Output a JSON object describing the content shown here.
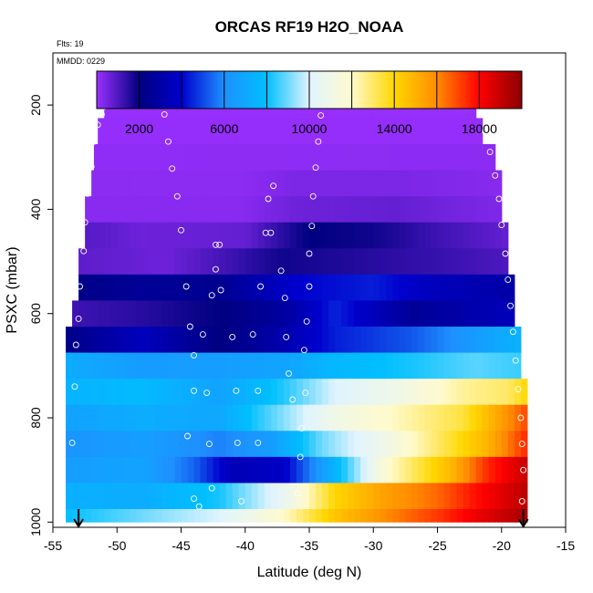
{
  "chart_data": {
    "type": "heatmap",
    "title": "ORCAS RF19 H2O_NOAA",
    "note_flights": "Flts: 19",
    "note_date": "MMDD: 0229",
    "xlabel": "Latitude (deg N)",
    "ylabel": "PSXC (mbar)",
    "xlim": [
      -55,
      -15
    ],
    "ylim": [
      1010,
      100
    ],
    "x_ticks": [
      -55,
      -50,
      -45,
      -40,
      -35,
      -30,
      -25,
      -20,
      -15
    ],
    "y_ticks": [
      200,
      400,
      600,
      800,
      1000
    ],
    "colorbar": {
      "range": [
        0,
        20000
      ],
      "ticks": [
        2000,
        6000,
        10000,
        14000,
        18000
      ],
      "stops": [
        {
          "v": 0,
          "c": "#9b30ff"
        },
        {
          "v": 2000,
          "c": "#000080"
        },
        {
          "v": 4000,
          "c": "#0000cd"
        },
        {
          "v": 6000,
          "c": "#1e90ff"
        },
        {
          "v": 8000,
          "c": "#00bfff"
        },
        {
          "v": 10000,
          "c": "#e0f4ff"
        },
        {
          "v": 12000,
          "c": "#fffacd"
        },
        {
          "v": 14000,
          "c": "#ffd700"
        },
        {
          "v": 16000,
          "c": "#ff8c00"
        },
        {
          "v": 18000,
          "c": "#ff0000"
        },
        {
          "v": 20000,
          "c": "#8b0000"
        }
      ]
    },
    "bands": [
      {
        "p": [
          175,
          225
        ],
        "lat": [
          -51,
          -22
        ],
        "vals": [
          {
            "lat": -51,
            "v": 50
          },
          {
            "lat": -22,
            "v": 50
          }
        ]
      },
      {
        "p": [
          225,
          275
        ],
        "lat": [
          -51.5,
          -21.5
        ],
        "vals": [
          {
            "lat": -51.5,
            "v": 80
          },
          {
            "lat": -21.5,
            "v": 80
          }
        ]
      },
      {
        "p": [
          275,
          325
        ],
        "lat": [
          -51.8,
          -20.5
        ],
        "vals": [
          {
            "lat": -51.8,
            "v": 150
          },
          {
            "lat": -20.5,
            "v": 200
          }
        ]
      },
      {
        "p": [
          325,
          375
        ],
        "lat": [
          -52,
          -20
        ],
        "vals": [
          {
            "lat": -52,
            "v": 200
          },
          {
            "lat": -40,
            "v": 200
          },
          {
            "lat": -36,
            "v": 400
          },
          {
            "lat": -28,
            "v": 400
          },
          {
            "lat": -20,
            "v": 250
          }
        ]
      },
      {
        "p": [
          375,
          425
        ],
        "lat": [
          -52.5,
          -20
        ],
        "vals": [
          {
            "lat": -52.5,
            "v": 250
          },
          {
            "lat": -40,
            "v": 250
          },
          {
            "lat": -36,
            "v": 600
          },
          {
            "lat": -28,
            "v": 700
          },
          {
            "lat": -20,
            "v": 350
          }
        ]
      },
      {
        "p": [
          425,
          475
        ],
        "lat": [
          -52.5,
          -19.5
        ],
        "vals": [
          {
            "lat": -52.5,
            "v": 900
          },
          {
            "lat": -48,
            "v": 600
          },
          {
            "lat": -40,
            "v": 700
          },
          {
            "lat": -35,
            "v": 2000
          },
          {
            "lat": -30,
            "v": 1800
          },
          {
            "lat": -25,
            "v": 1200
          },
          {
            "lat": -19.5,
            "v": 700
          }
        ]
      },
      {
        "p": [
          475,
          525
        ],
        "lat": [
          -53,
          -19.5
        ],
        "vals": [
          {
            "lat": -53,
            "v": 800
          },
          {
            "lat": -46,
            "v": 600
          },
          {
            "lat": -42,
            "v": 1100
          },
          {
            "lat": -37,
            "v": 1800
          },
          {
            "lat": -30,
            "v": 1500
          },
          {
            "lat": -25,
            "v": 1300
          },
          {
            "lat": -19.5,
            "v": 1000
          }
        ]
      },
      {
        "p": [
          525,
          575
        ],
        "lat": [
          -53,
          -19
        ],
        "vals": [
          {
            "lat": -53,
            "v": 2200
          },
          {
            "lat": -48,
            "v": 2600
          },
          {
            "lat": -42,
            "v": 2400
          },
          {
            "lat": -36,
            "v": 4000
          },
          {
            "lat": -30,
            "v": 4400
          },
          {
            "lat": -25,
            "v": 3500
          },
          {
            "lat": -19,
            "v": 3000
          }
        ]
      },
      {
        "p": [
          575,
          625
        ],
        "lat": [
          -53.5,
          -19
        ],
        "vals": [
          {
            "lat": -53.5,
            "v": 1200
          },
          {
            "lat": -48,
            "v": 1500
          },
          {
            "lat": -42,
            "v": 2000
          },
          {
            "lat": -37,
            "v": 2800
          },
          {
            "lat": -33,
            "v": 4500
          },
          {
            "lat": -27,
            "v": 2600
          },
          {
            "lat": -19,
            "v": 3500
          }
        ]
      },
      {
        "p": [
          625,
          675
        ],
        "lat": [
          -54,
          -18.5
        ],
        "vals": [
          {
            "lat": -54,
            "v": 2200
          },
          {
            "lat": -48,
            "v": 3600
          },
          {
            "lat": -42,
            "v": 2000
          },
          {
            "lat": -37,
            "v": 3200
          },
          {
            "lat": -33,
            "v": 4400
          },
          {
            "lat": -27,
            "v": 5200
          },
          {
            "lat": -22,
            "v": 6500
          },
          {
            "lat": -18.5,
            "v": 7500
          }
        ]
      },
      {
        "p": [
          675,
          725
        ],
        "lat": [
          -54,
          -18.5
        ],
        "vals": [
          {
            "lat": -54,
            "v": 7200
          },
          {
            "lat": -48,
            "v": 6500
          },
          {
            "lat": -42,
            "v": 6600
          },
          {
            "lat": -37,
            "v": 6800
          },
          {
            "lat": -33,
            "v": 7700
          },
          {
            "lat": -27,
            "v": 8200
          },
          {
            "lat": -22,
            "v": 8800
          },
          {
            "lat": -18.5,
            "v": 8500
          }
        ]
      },
      {
        "p": [
          725,
          775
        ],
        "lat": [
          -54,
          -18
        ],
        "vals": [
          {
            "lat": -54,
            "v": 7500
          },
          {
            "lat": -48,
            "v": 7800
          },
          {
            "lat": -42,
            "v": 6800
          },
          {
            "lat": -37,
            "v": 8300
          },
          {
            "lat": -33,
            "v": 10000
          },
          {
            "lat": -28,
            "v": 11000
          },
          {
            "lat": -23,
            "v": 12500
          },
          {
            "lat": -19.5,
            "v": 13000
          },
          {
            "lat": -18,
            "v": 14000
          }
        ]
      },
      {
        "p": [
          775,
          825
        ],
        "lat": [
          -54,
          -18
        ],
        "vals": [
          {
            "lat": -54,
            "v": 6800
          },
          {
            "lat": -48,
            "v": 7200
          },
          {
            "lat": -42,
            "v": 7000
          },
          {
            "lat": -37,
            "v": 9200
          },
          {
            "lat": -33,
            "v": 11000
          },
          {
            "lat": -28,
            "v": 12200
          },
          {
            "lat": -23,
            "v": 13400
          },
          {
            "lat": -20,
            "v": 15500
          },
          {
            "lat": -18,
            "v": 17000
          }
        ]
      },
      {
        "p": [
          825,
          875
        ],
        "lat": [
          -54,
          -18
        ],
        "vals": [
          {
            "lat": -54,
            "v": 6200
          },
          {
            "lat": -48,
            "v": 6600
          },
          {
            "lat": -42,
            "v": 5800
          },
          {
            "lat": -38,
            "v": 6500
          },
          {
            "lat": -34,
            "v": 9000
          },
          {
            "lat": -29,
            "v": 11000
          },
          {
            "lat": -24,
            "v": 13500
          },
          {
            "lat": -21,
            "v": 15000
          },
          {
            "lat": -18,
            "v": 17500
          }
        ]
      },
      {
        "p": [
          875,
          925
        ],
        "lat": [
          -54,
          -18
        ],
        "vals": [
          {
            "lat": -54,
            "v": 6600
          },
          {
            "lat": -48,
            "v": 6800
          },
          {
            "lat": -44,
            "v": 5400
          },
          {
            "lat": -41,
            "v": 3400
          },
          {
            "lat": -37,
            "v": 3800
          },
          {
            "lat": -33,
            "v": 7500
          },
          {
            "lat": -29,
            "v": 11800
          },
          {
            "lat": -24,
            "v": 14800
          },
          {
            "lat": -21,
            "v": 17500
          },
          {
            "lat": -18,
            "v": 19000
          }
        ]
      },
      {
        "p": [
          925,
          975
        ],
        "lat": [
          -54,
          -18
        ],
        "vals": [
          {
            "lat": -54,
            "v": 7400
          },
          {
            "lat": -48,
            "v": 7200
          },
          {
            "lat": -42,
            "v": 8200
          },
          {
            "lat": -37,
            "v": 10500
          },
          {
            "lat": -33,
            "v": 14000
          },
          {
            "lat": -29,
            "v": 15500
          },
          {
            "lat": -25,
            "v": 16500
          },
          {
            "lat": -22,
            "v": 17800
          },
          {
            "lat": -18,
            "v": 19200
          }
        ]
      },
      {
        "p": [
          975,
          1000
        ],
        "lat": [
          -54,
          -18
        ],
        "vals": [
          {
            "lat": -54,
            "v": 8000
          },
          {
            "lat": -48,
            "v": 9000
          },
          {
            "lat": -42,
            "v": 10000
          },
          {
            "lat": -37,
            "v": 12000
          },
          {
            "lat": -33,
            "v": 14500
          },
          {
            "lat": -29,
            "v": 16000
          },
          {
            "lat": -25,
            "v": 17200
          },
          {
            "lat": -22,
            "v": 18300
          },
          {
            "lat": -18,
            "v": 19500
          }
        ]
      }
    ],
    "track_points": [
      {
        "lat": -50.7,
        "p": 190
      },
      {
        "lat": -50.2,
        "p": 190
      },
      {
        "lat": -49.6,
        "p": 190
      },
      {
        "lat": -49.0,
        "p": 190
      },
      {
        "lat": -48.4,
        "p": 190
      },
      {
        "lat": -47.8,
        "p": 190
      },
      {
        "lat": -47.2,
        "p": 190
      },
      {
        "lat": -46.6,
        "p": 190
      },
      {
        "lat": -51.0,
        "p": 203
      },
      {
        "lat": -51.2,
        "p": 218
      },
      {
        "lat": -51.5,
        "p": 238
      },
      {
        "lat": -51.8,
        "p": 270
      },
      {
        "lat": -52.0,
        "p": 318
      },
      {
        "lat": -52.3,
        "p": 370
      },
      {
        "lat": -52.5,
        "p": 425
      },
      {
        "lat": -52.6,
        "p": 480
      },
      {
        "lat": -52.9,
        "p": 548
      },
      {
        "lat": -53.0,
        "p": 610
      },
      {
        "lat": -53.2,
        "p": 660
      },
      {
        "lat": -53.3,
        "p": 740
      },
      {
        "lat": -53.5,
        "p": 848
      },
      {
        "lat": -46.3,
        "p": 218
      },
      {
        "lat": -46.0,
        "p": 270
      },
      {
        "lat": -45.7,
        "p": 322
      },
      {
        "lat": -45.3,
        "p": 375
      },
      {
        "lat": -45.0,
        "p": 440
      },
      {
        "lat": -44.6,
        "p": 548
      },
      {
        "lat": -44.3,
        "p": 625
      },
      {
        "lat": -44.0,
        "p": 680
      },
      {
        "lat": -44.0,
        "p": 748
      },
      {
        "lat": -44.5,
        "p": 835
      },
      {
        "lat": -44.0,
        "p": 955
      },
      {
        "lat": -43.6,
        "p": 970
      },
      {
        "lat": -43.3,
        "p": 640
      },
      {
        "lat": -43.0,
        "p": 752
      },
      {
        "lat": -42.8,
        "p": 850
      },
      {
        "lat": -42.6,
        "p": 935
      },
      {
        "lat": -42.3,
        "p": 468
      },
      {
        "lat": -42.0,
        "p": 468
      },
      {
        "lat": -42.3,
        "p": 515
      },
      {
        "lat": -42.6,
        "p": 565
      },
      {
        "lat": -41.9,
        "p": 555
      },
      {
        "lat": -41.0,
        "p": 645
      },
      {
        "lat": -40.7,
        "p": 748
      },
      {
        "lat": -40.6,
        "p": 848
      },
      {
        "lat": -40.3,
        "p": 960
      },
      {
        "lat": -39.4,
        "p": 640
      },
      {
        "lat": -39.0,
        "p": 748
      },
      {
        "lat": -39.0,
        "p": 848
      },
      {
        "lat": -38.8,
        "p": 548
      },
      {
        "lat": -38.4,
        "p": 445
      },
      {
        "lat": -38.0,
        "p": 445
      },
      {
        "lat": -38.2,
        "p": 380
      },
      {
        "lat": -37.8,
        "p": 355
      },
      {
        "lat": -37.2,
        "p": 518
      },
      {
        "lat": -36.9,
        "p": 570
      },
      {
        "lat": -36.8,
        "p": 645
      },
      {
        "lat": -36.6,
        "p": 715
      },
      {
        "lat": -36.3,
        "p": 765
      },
      {
        "lat": -35.9,
        "p": 945
      },
      {
        "lat": -35.7,
        "p": 875
      },
      {
        "lat": -35.6,
        "p": 820
      },
      {
        "lat": -35.3,
        "p": 752
      },
      {
        "lat": -35.4,
        "p": 670
      },
      {
        "lat": -35.2,
        "p": 615
      },
      {
        "lat": -35.0,
        "p": 548
      },
      {
        "lat": -35.0,
        "p": 485
      },
      {
        "lat": -34.8,
        "p": 432
      },
      {
        "lat": -34.7,
        "p": 375
      },
      {
        "lat": -34.5,
        "p": 320
      },
      {
        "lat": -34.3,
        "p": 270
      },
      {
        "lat": -34.1,
        "p": 220
      },
      {
        "lat": -33.8,
        "p": 198
      },
      {
        "lat": -33.6,
        "p": 190
      },
      {
        "lat": -33.0,
        "p": 190
      },
      {
        "lat": -32.4,
        "p": 190
      },
      {
        "lat": -31.8,
        "p": 190
      },
      {
        "lat": -31.2,
        "p": 190
      },
      {
        "lat": -30.6,
        "p": 190
      },
      {
        "lat": -30.0,
        "p": 190
      },
      {
        "lat": -29.4,
        "p": 190
      },
      {
        "lat": -28.8,
        "p": 190
      },
      {
        "lat": -28.2,
        "p": 190
      },
      {
        "lat": -27.6,
        "p": 190
      },
      {
        "lat": -27.0,
        "p": 190
      },
      {
        "lat": -26.4,
        "p": 190
      },
      {
        "lat": -25.8,
        "p": 190
      },
      {
        "lat": -25.2,
        "p": 190
      },
      {
        "lat": -24.6,
        "p": 190
      },
      {
        "lat": -24.0,
        "p": 190
      },
      {
        "lat": -23.4,
        "p": 190
      },
      {
        "lat": -22.8,
        "p": 190
      },
      {
        "lat": -22.2,
        "p": 190
      },
      {
        "lat": -21.7,
        "p": 210
      },
      {
        "lat": -21.3,
        "p": 250
      },
      {
        "lat": -20.9,
        "p": 290
      },
      {
        "lat": -20.5,
        "p": 335
      },
      {
        "lat": -20.2,
        "p": 380
      },
      {
        "lat": -20.0,
        "p": 430
      },
      {
        "lat": -19.7,
        "p": 485
      },
      {
        "lat": -19.5,
        "p": 535
      },
      {
        "lat": -19.3,
        "p": 585
      },
      {
        "lat": -19.1,
        "p": 635
      },
      {
        "lat": -18.9,
        "p": 690
      },
      {
        "lat": -18.7,
        "p": 745
      },
      {
        "lat": -18.5,
        "p": 800
      },
      {
        "lat": -18.4,
        "p": 850
      },
      {
        "lat": -18.3,
        "p": 900
      },
      {
        "lat": -18.4,
        "p": 960
      }
    ],
    "arrows": [
      {
        "lat": -53.0
      },
      {
        "lat": -18.3
      }
    ]
  }
}
